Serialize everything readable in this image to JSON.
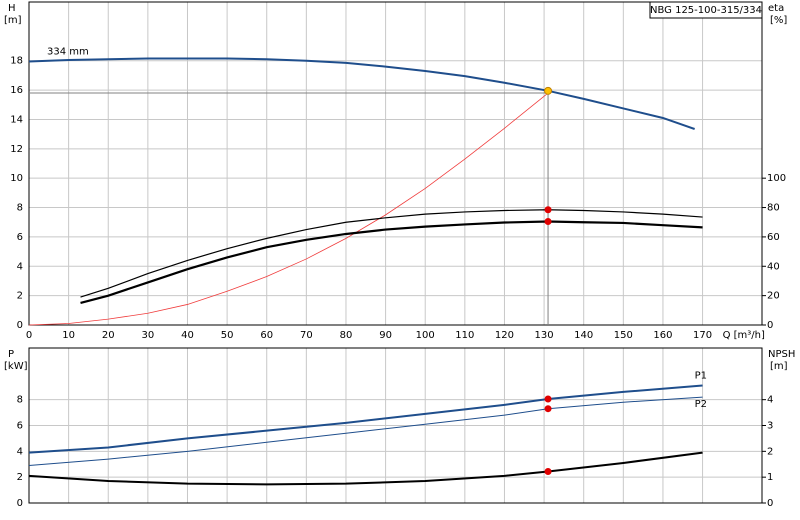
{
  "chart_data": [
    {
      "type": "line",
      "title": "NBG 125-100-315/334",
      "y_label": "H",
      "y_unit": "[m]",
      "y2_label": "eta",
      "y2_unit": "[%]",
      "x_label": "Q [m³/h]",
      "xlim": [
        0,
        185
      ],
      "xticks": [
        0,
        10,
        20,
        30,
        40,
        50,
        60,
        70,
        80,
        90,
        100,
        110,
        120,
        130,
        140,
        150,
        160,
        170
      ],
      "ylim": [
        0,
        22
      ],
      "yticks": [
        0,
        2,
        4,
        6,
        8,
        10,
        12,
        14,
        16,
        18
      ],
      "y2lim": [
        0,
        220
      ],
      "y2ticks": [
        0,
        20,
        40,
        60,
        80,
        100
      ],
      "grid": true,
      "operating_point": {
        "x": 131,
        "y": 15.8
      },
      "series": [
        {
          "name": "334 mm",
          "label_pos": "start",
          "color": "#1f4e8c",
          "width": 2,
          "x": [
            0,
            10,
            20,
            30,
            40,
            50,
            60,
            70,
            80,
            90,
            100,
            110,
            120,
            131,
            140,
            150,
            160,
            168
          ],
          "values": [
            17.95,
            18.05,
            18.1,
            18.15,
            18.15,
            18.15,
            18.1,
            18.0,
            17.85,
            17.6,
            17.3,
            16.95,
            16.5,
            15.95,
            15.4,
            14.75,
            14.1,
            13.35
          ]
        },
        {
          "color": "#f03c3c",
          "width": 0.8,
          "x": [
            0,
            10,
            20,
            30,
            40,
            50,
            60,
            70,
            80,
            90,
            100,
            110,
            120,
            131
          ],
          "values": [
            0,
            0.1,
            0.4,
            0.8,
            1.4,
            2.3,
            3.3,
            4.5,
            5.9,
            7.5,
            9.3,
            11.3,
            13.4,
            15.8
          ]
        },
        {
          "color": "#000000",
          "width": 1.2,
          "axis": "y2",
          "x": [
            13,
            20,
            30,
            40,
            50,
            60,
            70,
            80,
            90,
            100,
            110,
            120,
            131,
            140,
            150,
            160,
            170
          ],
          "values": [
            19,
            25,
            35,
            44,
            52,
            59,
            65,
            70,
            73,
            75.5,
            77,
            78,
            78.5,
            78,
            77,
            75.5,
            73.5
          ]
        },
        {
          "color": "#000000",
          "width": 2.2,
          "axis": "y2",
          "x": [
            13,
            20,
            30,
            40,
            50,
            60,
            70,
            80,
            90,
            100,
            110,
            120,
            131,
            140,
            150,
            160,
            170
          ],
          "values": [
            15,
            20,
            29,
            38,
            46,
            53,
            58,
            62,
            65,
            67,
            68.5,
            69.8,
            70.5,
            70,
            69.5,
            68,
            66.5
          ]
        },
        {
          "marker": true,
          "color": "#ffc000",
          "x": [
            131
          ],
          "values": [
            15.95
          ]
        },
        {
          "marker": true,
          "color": "#e00000",
          "axis": "y2",
          "x": [
            131
          ],
          "values": [
            78.5
          ]
        },
        {
          "marker": true,
          "color": "#e00000",
          "axis": "y2",
          "x": [
            131
          ],
          "values": [
            70.5
          ]
        }
      ]
    },
    {
      "type": "line",
      "y_label": "P",
      "y_unit": "[kW]",
      "y2_label": "NPSH",
      "y2_unit": "[m]",
      "xlim": [
        0,
        185
      ],
      "xticks": [
        0,
        10,
        20,
        30,
        40,
        50,
        60,
        70,
        80,
        90,
        100,
        110,
        120,
        130,
        140,
        150,
        160,
        170
      ],
      "show_xtick_labels": false,
      "ylim": [
        0,
        12
      ],
      "yticks": [
        0,
        2,
        4,
        6,
        8
      ],
      "y2lim": [
        0,
        6
      ],
      "y2ticks": [
        0,
        1,
        2,
        3,
        4
      ],
      "grid": true,
      "series": [
        {
          "name": "P1",
          "label_pos": "end-above",
          "color": "#1f4e8c",
          "width": 2,
          "x": [
            0,
            20,
            40,
            60,
            80,
            100,
            120,
            131,
            150,
            170
          ],
          "values": [
            3.9,
            4.3,
            5.0,
            5.6,
            6.2,
            6.9,
            7.6,
            8.05,
            8.6,
            9.1
          ]
        },
        {
          "name": "P2",
          "label_pos": "end-below",
          "color": "#1f4e8c",
          "width": 1,
          "x": [
            0,
            20,
            40,
            60,
            80,
            100,
            120,
            131,
            150,
            170
          ],
          "values": [
            2.9,
            3.4,
            4.0,
            4.7,
            5.4,
            6.1,
            6.8,
            7.3,
            7.8,
            8.2
          ]
        },
        {
          "color": "#000000",
          "width": 2,
          "axis": "y2",
          "x": [
            0,
            20,
            40,
            60,
            80,
            100,
            120,
            131,
            150,
            170
          ],
          "values": [
            1.05,
            0.85,
            0.75,
            0.72,
            0.75,
            0.85,
            1.05,
            1.22,
            1.55,
            1.95
          ]
        },
        {
          "marker": true,
          "color": "#e00000",
          "x": [
            131
          ],
          "values": [
            8.05
          ]
        },
        {
          "marker": true,
          "color": "#e00000",
          "x": [
            131
          ],
          "values": [
            7.3
          ]
        },
        {
          "marker": true,
          "color": "#e00000",
          "axis": "y2",
          "x": [
            131
          ],
          "values": [
            1.22
          ]
        }
      ]
    }
  ]
}
